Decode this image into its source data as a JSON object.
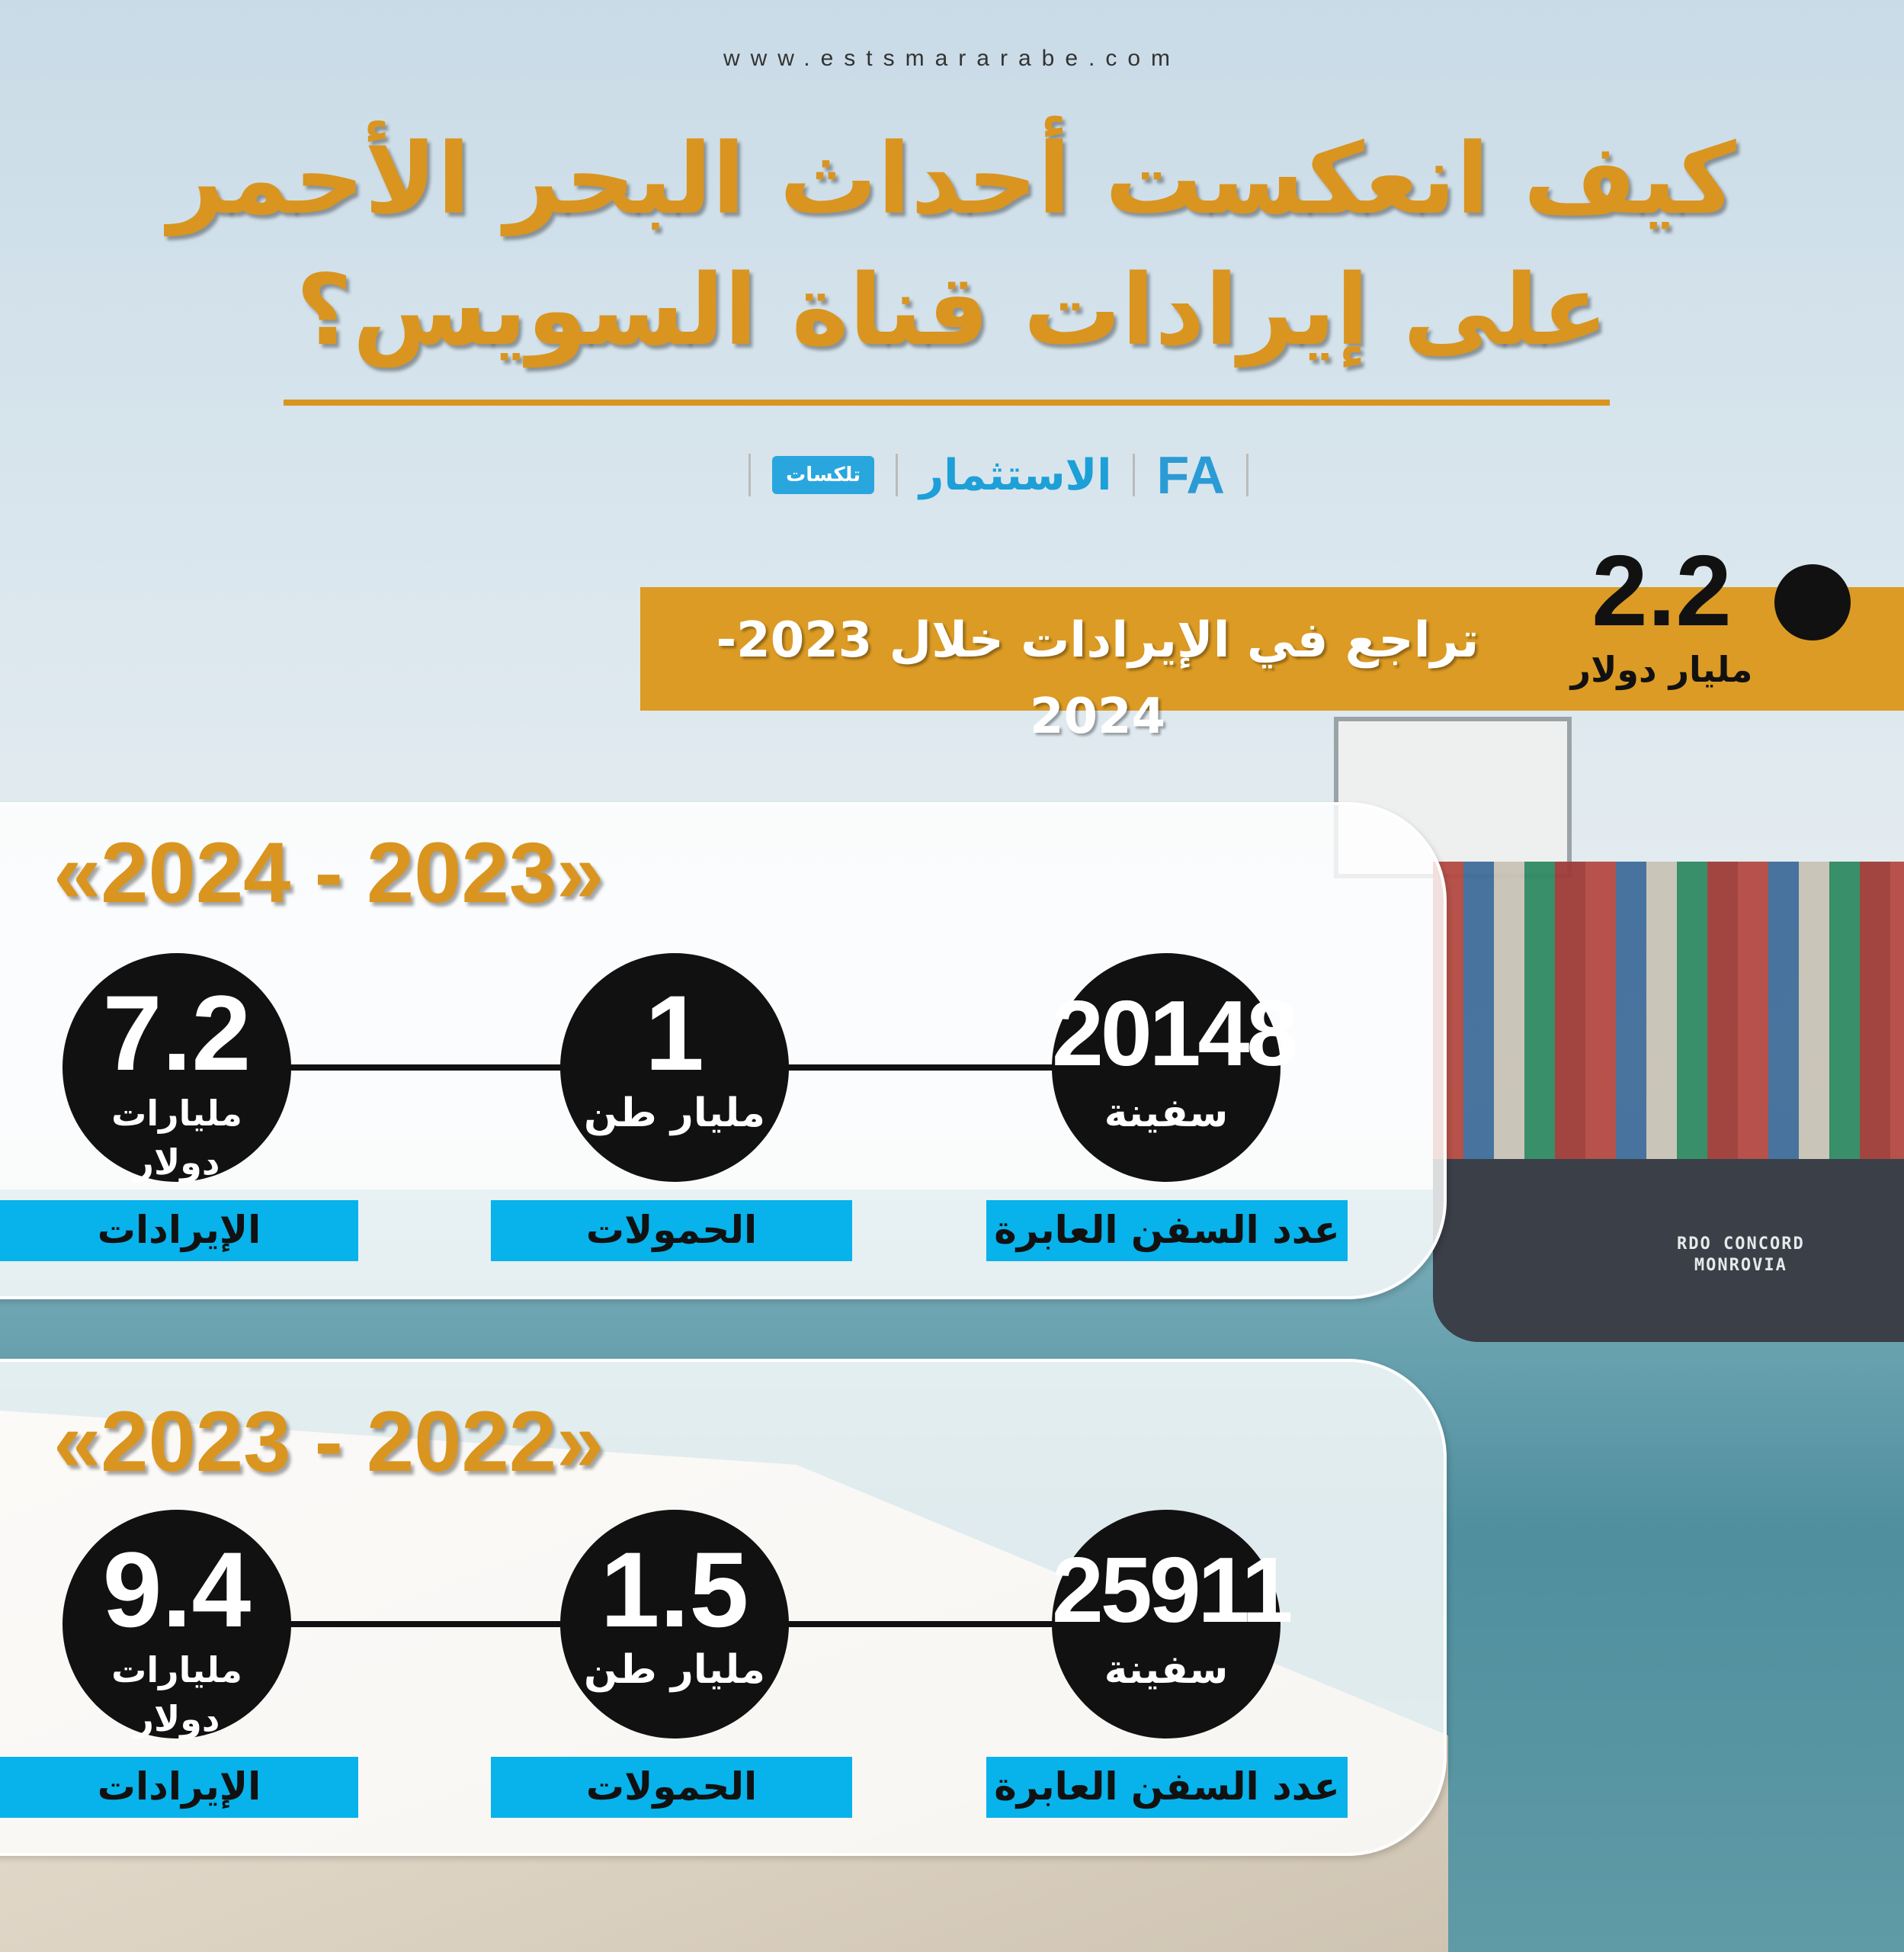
{
  "header": {
    "website": "www.estsmararabe.com",
    "title_line1": "كيف انعكست أحداث البحر الأحمر",
    "title_line2": "على إيرادات قناة السويس؟"
  },
  "logos": {
    "fa": "FA",
    "estsmar": "الاستثمار",
    "talkasat": "تلكسات"
  },
  "banner": {
    "value": "2.2",
    "unit": "مليار دولار",
    "text": "تراجع في الإيرادات خلال 2023-2024"
  },
  "ship": {
    "name": "RDO CONCORD",
    "port": "MONROVIA"
  },
  "periods": [
    {
      "year_label": "«2024 - 2023»",
      "ships": {
        "value": "20148",
        "unit": "سفينة",
        "label": "عدد السفن العابرة"
      },
      "cargo": {
        "value": "1",
        "unit": "مليار طن",
        "label": "الحمولات"
      },
      "revenue": {
        "value": "7.2",
        "unit": "مليارات دولار",
        "label": "الإيرادات"
      }
    },
    {
      "year_label": "«2023 - 2022»",
      "ships": {
        "value": "25911",
        "unit": "سفينة",
        "label": "عدد السفن العابرة"
      },
      "cargo": {
        "value": "1.5",
        "unit": "مليار طن",
        "label": "الحمولات"
      },
      "revenue": {
        "value": "9.4",
        "unit": "مليارات دولار",
        "label": "الإيرادات"
      }
    }
  ],
  "colors": {
    "gold": "#d9951f",
    "banner": "#dc9b24",
    "label_blue": "#08b2ea",
    "circle": "#111111"
  }
}
